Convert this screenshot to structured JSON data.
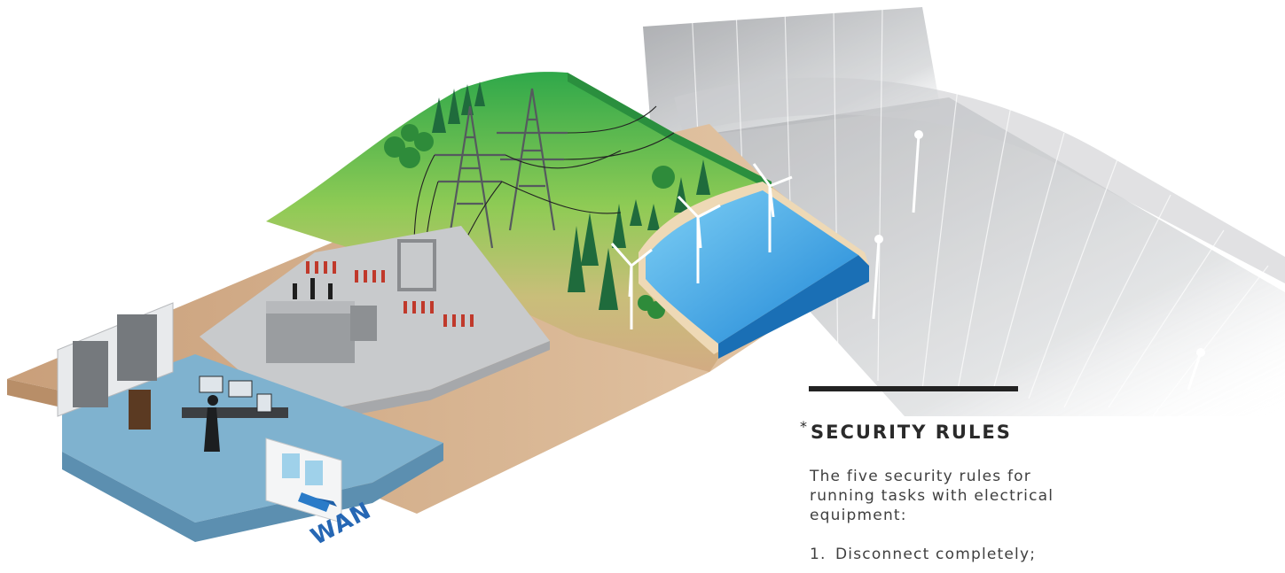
{
  "illustration": {
    "wan_label": "WAN",
    "colors": {
      "hill_green": "#4caf50",
      "hill_light": "#9ccf4f",
      "ground_sand": "#d2ab83",
      "water": "#2a9be0",
      "floor_blue": "#7fb2cf",
      "substation_gray": "#c8cacc",
      "fan_gray": "#a8aaad"
    }
  },
  "panel": {
    "asterisk": "*",
    "title": "SECURITY RULES",
    "intro": "The five security rules for running tasks with electrical equipment:",
    "items": [
      {
        "number": "1.",
        "text": "Disconnect completely;"
      }
    ]
  }
}
